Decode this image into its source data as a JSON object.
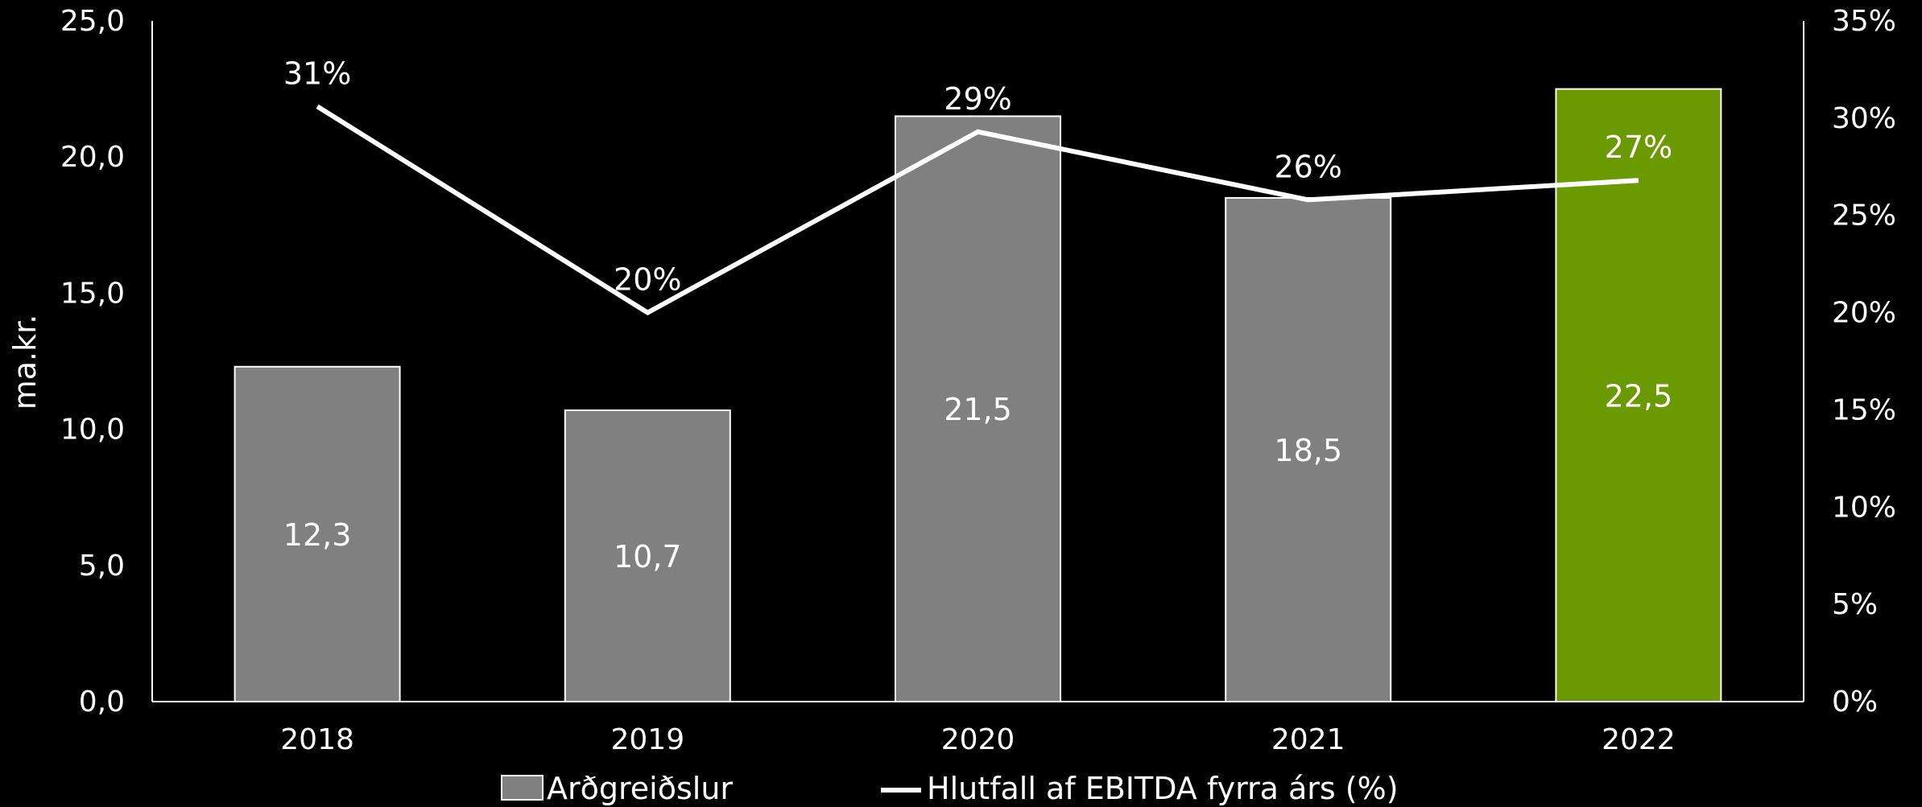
{
  "chart_data": {
    "type": "bar",
    "categories": [
      "2018",
      "2019",
      "2020",
      "2021",
      "2022"
    ],
    "series": [
      {
        "name": "Arðgreiðslur",
        "type": "bar",
        "axis": "left",
        "values": [
          12.3,
          10.7,
          21.5,
          18.5,
          22.5
        ],
        "labels": [
          "12,3",
          "10,7",
          "21,5",
          "18,5",
          "22,5"
        ],
        "colors": [
          "#808080",
          "#808080",
          "#808080",
          "#808080",
          "#6a9a00"
        ]
      },
      {
        "name": "Hlutfall af EBITDA fyrra árs (%)",
        "type": "line",
        "axis": "right",
        "values": [
          30.6,
          20.0,
          29.3,
          25.8,
          26.8
        ],
        "labels": [
          "31%",
          "20%",
          "29%",
          "26%",
          "27%"
        ],
        "color": "#ffffff"
      }
    ],
    "ylabel": "ma.kr.",
    "ylim": [
      0,
      25
    ],
    "y_ticks": [
      "0,0",
      "5,0",
      "10,0",
      "15,0",
      "20,0",
      "25,0"
    ],
    "y2lim": [
      0,
      35
    ],
    "y2_ticks": [
      "0%",
      "5%",
      "10%",
      "15%",
      "20%",
      "25%",
      "30%",
      "35%"
    ],
    "grid": false,
    "legend_position": "bottom",
    "background": "#000000"
  }
}
